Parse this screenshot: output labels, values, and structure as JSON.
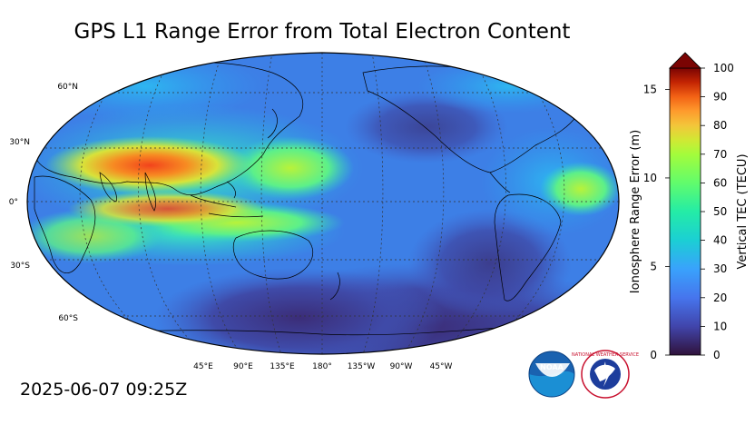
{
  "title": "GPS L1 Range Error from Total Electron Content",
  "timestamp": "2025-06-07 09:25Z",
  "map": {
    "projection": "robinson",
    "central_longitude": 180,
    "lat_labels": [
      "60°N",
      "30°N",
      "0°",
      "30°S",
      "60°S"
    ],
    "lon_labels": [
      "45°E",
      "90°E",
      "135°E",
      "180°",
      "135°W",
      "90°W",
      "45°W"
    ]
  },
  "colorbar": {
    "left_label": "Ionosphere Range Error (m)",
    "right_label": "Vertical TEC (TECU)",
    "left_ticks": [
      "0",
      "5",
      "10",
      "15"
    ],
    "right_ticks": [
      "0",
      "10",
      "20",
      "30",
      "40",
      "50",
      "60",
      "70",
      "80",
      "90",
      "100"
    ],
    "extend": "max",
    "colormap": "turbo"
  },
  "logos": {
    "noaa": "NOAA",
    "nws": "NATIONAL WEATHER SERVICE"
  }
}
